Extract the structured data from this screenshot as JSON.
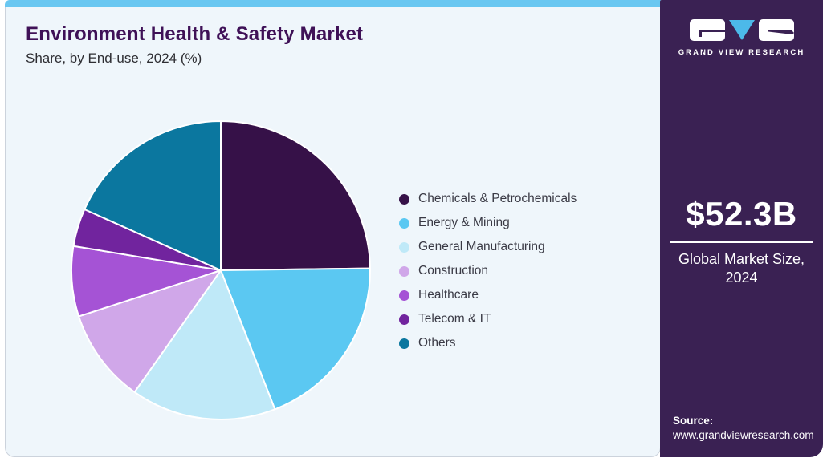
{
  "header": {
    "title": "Environment Health & Safety Market",
    "subtitle": "Share, by End-use, 2024 (%)"
  },
  "chart_data": {
    "type": "pie",
    "title": "Environment Health & Safety Market Share, by End-use, 2024 (%)",
    "unit": "%",
    "start_angle_deg": 0,
    "direction": "clockwise",
    "legend_position": "right",
    "slices": [
      {
        "label": "Chemicals & Petrochemicals",
        "value": 24.8,
        "color": "#361148"
      },
      {
        "label": "Energy & Mining",
        "value": 19.3,
        "color": "#5bc8f2"
      },
      {
        "label": "General Manufacturing",
        "value": 15.7,
        "color": "#bfe9f8"
      },
      {
        "label": "Construction",
        "value": 10.2,
        "color": "#d0a7e9"
      },
      {
        "label": "Healthcare",
        "value": 7.6,
        "color": "#a553d5"
      },
      {
        "label": "Telecom & IT",
        "value": 4.1,
        "color": "#71249e"
      },
      {
        "label": "Others",
        "value": 18.3,
        "color": "#0b779f"
      }
    ]
  },
  "sidebar": {
    "brand": "GRAND VIEW RESEARCH",
    "market_size": {
      "value": "$52.3B",
      "caption_line1": "Global Market Size,",
      "caption_line2": "2024"
    },
    "source": {
      "label": "Source:",
      "url": "www.grandviewresearch.com"
    }
  },
  "colors": {
    "accent_bar": "#69c7f1",
    "card_bg": "#eff6fb",
    "sidebar_bg": "#3a2153",
    "title_text": "#3f1157",
    "pie_stroke": "#ffffff"
  }
}
